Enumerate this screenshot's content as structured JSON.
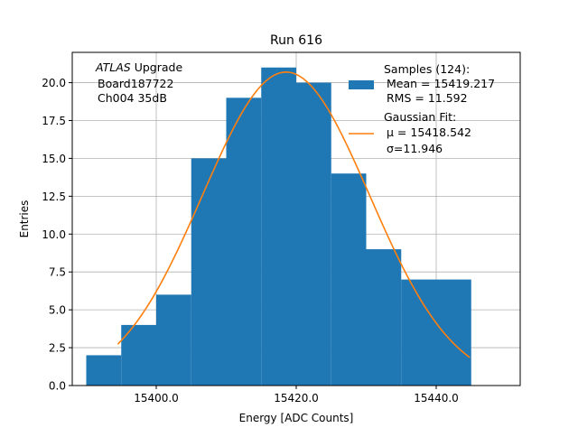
{
  "chart_data": {
    "type": "bar",
    "title": "Run 616",
    "xlabel": "Energy [ADC Counts]",
    "ylabel": "Entries",
    "xlim": [
      15388.0,
      15452.0
    ],
    "ylim": [
      0,
      22.0
    ],
    "x_ticks": [
      15400.0,
      15420.0,
      15440.0
    ],
    "x_tick_labels": [
      "15400.0",
      "15420.0",
      "15440.0"
    ],
    "y_ticks": [
      0.0,
      2.5,
      5.0,
      7.5,
      10.0,
      12.5,
      15.0,
      17.5,
      20.0
    ],
    "y_tick_labels": [
      "0.0",
      "2.5",
      "5.0",
      "7.5",
      "10.0",
      "12.5",
      "15.0",
      "17.5",
      "20.0"
    ],
    "grid": true,
    "bin_width": 5,
    "bins": [
      {
        "x0": 15390,
        "x1": 15395,
        "count": 2
      },
      {
        "x0": 15395,
        "x1": 15400,
        "count": 4
      },
      {
        "x0": 15400,
        "x1": 15405,
        "count": 6
      },
      {
        "x0": 15405,
        "x1": 15410,
        "count": 15
      },
      {
        "x0": 15410,
        "x1": 15415,
        "count": 19
      },
      {
        "x0": 15415,
        "x1": 15420,
        "count": 21
      },
      {
        "x0": 15420,
        "x1": 15425,
        "count": 20
      },
      {
        "x0": 15425,
        "x1": 15430,
        "count": 14
      },
      {
        "x0": 15430,
        "x1": 15435,
        "count": 9
      },
      {
        "x0": 15435,
        "x1": 15440,
        "count": 7
      },
      {
        "x0": 15440,
        "x1": 15445,
        "count": 7
      }
    ],
    "fit": {
      "amplitude": 20.7,
      "mu": 15418.542,
      "sigma": 11.946,
      "x_range": [
        15394.5,
        15444.8
      ]
    },
    "annotation": {
      "italic": "ATLAS",
      "rest": " Upgrade",
      "line2": "Board187722",
      "line3": "Ch004 35dB"
    },
    "legend": {
      "placement": "top-right",
      "entries": [
        {
          "type": "patch",
          "lines": [
            "Samples (124):",
            "Mean = 15419.217",
            "RMS = 11.592"
          ]
        },
        {
          "type": "line",
          "lines": [
            "Gaussian Fit:",
            "μ = 15418.542",
            "σ=11.946"
          ]
        }
      ]
    },
    "colors": {
      "bars": "#1f77b4",
      "fit_line": "#ff7f0e",
      "grid": "#b0b0b0",
      "axes": "#000000"
    }
  }
}
